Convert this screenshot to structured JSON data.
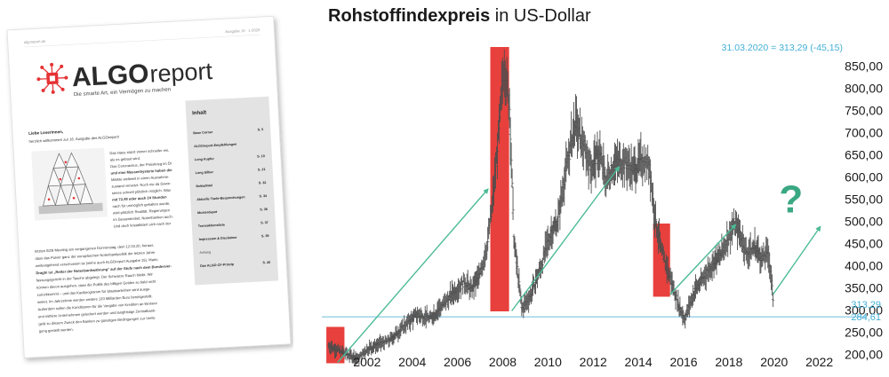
{
  "report": {
    "top_left_text": "algoreport.de",
    "top_right_text": "Ausgabe 16 · 1-2020",
    "logo_main": "ALGO",
    "logo_sub": "report",
    "tagline": "Die smarte Art, ein Vermögen zu machen",
    "salutation": "Liebe Leserinnen,",
    "welcome": "herzlich willkommen zur 16. Ausgabe des ALGOreport!",
    "intro_lines": [
      "Das Haus stürzt immer schneller ein,",
      "als es gebaut wird.",
      "",
      "Das Coronavirus, der Preiskrieg im Öl",
      "und eine Massenhysterie haben die",
      "Märkte weltweit in einen Ausnahme-",
      "zustand versetzt. Noch nie da Gewe-",
      "senes schnell plötzlich möglich. Was",
      "mit 72,48 oder auch 24 Stunden",
      "nach für unmöglich gehalten wurde,",
      "wird plötzlich Realität. Regierungen",
      "im Gesamtnebel, Notenbanken auch.",
      "Und doch kristallisiert sich nach der"
    ],
    "body_lines": [
      "letzten EZB-Meeting am vergangenen Donnerstag, dem 12.03.20, heraus,",
      "dass das Pulver ganz der europäischen Notenbankpolitik der letzten Jahre",
      "weitestgehend verschossen ist (siehe auch ALGOreport Ausgabe 15). Mario",
      "Draghi ist „Retter der Notenbankwährung“ auf der Stufe nach dem Bundesver-",
      "fassungsgericht in der Tasche abgelegt. Der Schwarze Rauch bleibt. Wir",
      "können davon ausgehen, dass die Politik des billigen Geldes so bald nicht",
      "zurückkommt – und das Kaufprogramm für Staatsanleihen wird ausge-",
      "weitet. Im Jahrzehnte werden weitere 120 Milliarden Euro bereitgestellt.",
      "Außerdem sollen die Konditionen für die Vergabe von Krediten an kleinere",
      "und mittlere Unternehmen gelockert werden und langfristige Zentralbank-",
      "geld zu diesem Zweck den Banken zu günstigen Bedingungen zur Verfü-",
      "gung gestellt werden."
    ],
    "toc_title": "Inhalt",
    "toc": [
      {
        "label": "Base Corner",
        "page": "S. 5"
      },
      {
        "label": "ALGOreport-Empfehlungen",
        "page": ""
      },
      {
        "label": "Long Kupfer",
        "page": "S. 10"
      },
      {
        "label": "Long Silber",
        "page": "S. 21"
      },
      {
        "label": "Nokia/Intel",
        "page": "S. 32"
      },
      {
        "label": "Aktuelle Trade-Besprechungen",
        "page": "S. 34"
      },
      {
        "label": "Musterdepot",
        "page": "S. 36"
      },
      {
        "label": "Transaktionsliste",
        "page": "S. 37"
      },
      {
        "label": "Impressum & Disclaimer",
        "page": "S. 39"
      },
      {
        "label": "Anhang",
        "page": ""
      },
      {
        "label": "Das ALGO-CF-Prinzip",
        "page": "S. 40"
      }
    ],
    "colors": {
      "logo_red": "#e63233",
      "logo_text": "#2b2b2b",
      "toc_bg": "#e3e3e3"
    }
  },
  "chart_data": {
    "type": "ohlc",
    "title_bold": "Rohstoffindexpreis",
    "title_rest": " in US-Dollar",
    "annotation": "31.03.2020 = 313,29 (-45,15)",
    "x_ticks": [
      "2002",
      "2004",
      "2006",
      "2008",
      "2010",
      "2012",
      "2014",
      "2016",
      "2018",
      "2020",
      "2022"
    ],
    "x_range": [
      2000.0,
      2022.8
    ],
    "y_ticks": [
      "200,00",
      "250,00",
      "300,00",
      "350,00",
      "400,00",
      "450,00",
      "500,00",
      "550,00",
      "600,00",
      "650,00",
      "700,00",
      "750,00",
      "800,00",
      "850,00"
    ],
    "y_range": [
      175,
      893
    ],
    "last_value": {
      "label": "313,29",
      "value": 313.29
    },
    "support_line": {
      "label": "284,61",
      "value": 284.61
    },
    "highlight_spans": [
      {
        "x0": 2000.2,
        "x1": 2001.0,
        "y0": 180,
        "y1": 262
      },
      {
        "x0": 2007.45,
        "x1": 2008.28,
        "y0": 297,
        "y1": 893
      },
      {
        "x0": 2014.65,
        "x1": 2015.4,
        "y0": 330,
        "y1": 495
      }
    ],
    "trend_arrows": [
      {
        "x0": 2000.7,
        "y0": 182,
        "x1": 2007.3,
        "y1": 570
      },
      {
        "x0": 2008.4,
        "y0": 298,
        "x1": 2013.1,
        "y1": 620
      },
      {
        "x0": 2015.4,
        "y0": 335,
        "x1": 2018.25,
        "y1": 490
      },
      {
        "x0": 2019.95,
        "y0": 335,
        "x1": 2022.0,
        "y1": 485
      }
    ],
    "question_mark": {
      "text": "?",
      "x": 2020.75,
      "y": 520
    },
    "series_keypoints": [
      [
        2000.3,
        220
      ],
      [
        2000.9,
        205
      ],
      [
        2001.6,
        190
      ],
      [
        2002.0,
        212
      ],
      [
        2003.0,
        232
      ],
      [
        2003.6,
        262
      ],
      [
        2004.2,
        290
      ],
      [
        2004.8,
        282
      ],
      [
        2005.5,
        320
      ],
      [
        2006.3,
        365
      ],
      [
        2006.6,
        345
      ],
      [
        2007.0,
        380
      ],
      [
        2007.3,
        445
      ],
      [
        2007.55,
        540
      ],
      [
        2007.85,
        715
      ],
      [
        2008.05,
        860
      ],
      [
        2008.3,
        760
      ],
      [
        2008.5,
        455
      ],
      [
        2008.85,
        302
      ],
      [
        2009.25,
        335
      ],
      [
        2009.7,
        400
      ],
      [
        2010.1,
        470
      ],
      [
        2010.45,
        505
      ],
      [
        2010.75,
        605
      ],
      [
        2011.2,
        722
      ],
      [
        2011.6,
        665
      ],
      [
        2011.9,
        620
      ],
      [
        2012.3,
        655
      ],
      [
        2012.55,
        590
      ],
      [
        2012.9,
        628
      ],
      [
        2013.35,
        635
      ],
      [
        2013.75,
        615
      ],
      [
        2014.2,
        640
      ],
      [
        2014.5,
        625
      ],
      [
        2014.7,
        520
      ],
      [
        2015.0,
        435
      ],
      [
        2015.4,
        375
      ],
      [
        2015.75,
        315
      ],
      [
        2016.05,
        280
      ],
      [
        2016.5,
        345
      ],
      [
        2016.9,
        375
      ],
      [
        2017.3,
        405
      ],
      [
        2017.65,
        425
      ],
      [
        2017.95,
        462
      ],
      [
        2018.25,
        495
      ],
      [
        2018.55,
        465
      ],
      [
        2018.8,
        425
      ],
      [
        2019.15,
        445
      ],
      [
        2019.45,
        415
      ],
      [
        2019.75,
        430
      ],
      [
        2019.98,
        315
      ]
    ],
    "colors": {
      "bars": "#4d4d4d",
      "highlight": "#e8403c",
      "arrow": "#4cbb96",
      "question": "#3aa882",
      "accent_text": "#42afd6",
      "support": "#7fc3df",
      "title": "#1a1a1a",
      "ticks": "#1a1a1a"
    }
  }
}
